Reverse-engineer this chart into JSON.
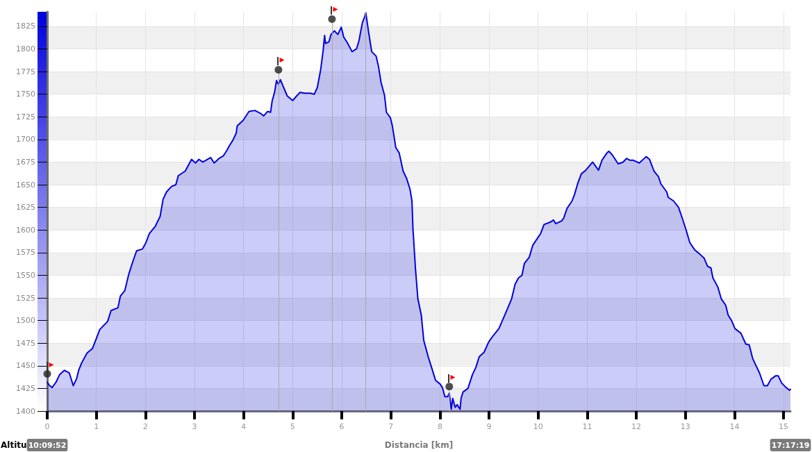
{
  "chart_data": {
    "type": "area",
    "xlabel": "Distancia [km]",
    "ylabel": "Altitu",
    "xlim": [
      0,
      15.14
    ],
    "xticks": [
      0,
      1,
      2,
      3,
      4,
      5,
      6,
      7,
      8,
      9,
      10,
      11,
      12,
      13,
      14,
      15
    ],
    "ylim": [
      1400,
      1841
    ],
    "yticks": [
      1400,
      1425,
      1450,
      1475,
      1500,
      1525,
      1550,
      1575,
      1600,
      1625,
      1650,
      1675,
      1700,
      1725,
      1750,
      1775,
      1800,
      1825
    ],
    "grid": true,
    "series": [
      {
        "color": "#0000dd",
        "x": [
          0,
          0.05,
          0.1,
          0.18,
          0.25,
          0.35,
          0.45,
          0.53,
          0.6,
          0.64,
          0.7,
          0.81,
          0.92,
          1,
          1.07,
          1.23,
          1.3,
          1.44,
          1.49,
          1.58,
          1.66,
          1.73,
          1.82,
          1.94,
          2.01,
          2.08,
          2.2,
          2.3,
          2.36,
          2.43,
          2.53,
          2.62,
          2.67,
          2.81,
          2.86,
          2.94,
          3.02,
          3.09,
          3.17,
          3.33,
          3.4,
          3.5,
          3.59,
          3.66,
          3.71,
          3.78,
          3.85,
          3.87,
          3.99,
          4.11,
          4.23,
          4.34,
          4.41,
          4.49,
          4.55,
          4.58,
          4.63,
          4.67,
          4.71,
          4.75,
          4.82,
          4.89,
          5,
          5.08,
          5.15,
          5.24,
          5.36,
          5.44,
          5.5,
          5.57,
          5.62,
          5.65,
          5.67,
          5.74,
          5.78,
          5.85,
          5.92,
          5.99,
          6.04,
          6.11,
          6.21,
          6.3,
          6.35,
          6.42,
          6.47,
          6.49,
          6.54,
          6.58,
          6.61,
          6.7,
          6.75,
          6.8,
          6.87,
          6.91,
          6.99,
          7.03,
          7.06,
          7.1,
          7.17,
          7.25,
          7.32,
          7.39,
          7.43,
          7.45,
          7.46,
          7.5,
          7.55,
          7.62,
          7.67,
          7.76,
          7.83,
          7.91,
          8,
          8.05,
          8.1,
          8.16,
          8.19,
          8.23,
          8.26,
          8.31,
          8.35,
          8.41,
          8.43,
          8.47,
          8.57,
          8.66,
          8.73,
          8.8,
          8.9,
          8.99,
          9.08,
          9.2,
          9.32,
          9.46,
          9.53,
          9.6,
          9.67,
          9.72,
          9.82,
          9.89,
          10,
          10.05,
          10.12,
          10.26,
          10.31,
          10.36,
          10.48,
          10.52,
          10.59,
          10.69,
          10.74,
          10.81,
          10.88,
          10.97,
          11.11,
          11.23,
          11.3,
          11.4,
          11.44,
          11.51,
          11.63,
          11.73,
          11.8,
          11.87,
          11.94,
          12.06,
          12.2,
          12.27,
          12.36,
          12.45,
          12.5,
          12.62,
          12.65,
          12.76,
          12.86,
          12.93,
          13.02,
          13.09,
          13.19,
          13.28,
          13.38,
          13.45,
          13.52,
          13.56,
          13.66,
          13.73,
          13.82,
          13.87,
          13.94,
          14.01,
          14.13,
          14.23,
          14.3,
          14.37,
          14.44,
          14.51,
          14.6,
          14.67,
          14.74,
          14.84,
          14.89,
          14.96,
          15.05,
          15.12,
          15.14
        ],
        "values": [
          1432,
          1428,
          1426,
          1432,
          1440,
          1445,
          1442,
          1428,
          1436,
          1445,
          1453,
          1464,
          1469,
          1480,
          1490,
          1499,
          1511,
          1514,
          1527,
          1533,
          1551,
          1563,
          1577,
          1579,
          1586,
          1596,
          1604,
          1615,
          1634,
          1642,
          1648,
          1650,
          1660,
          1665,
          1670,
          1678,
          1674,
          1678,
          1675,
          1680,
          1674,
          1679,
          1682,
          1688,
          1693,
          1699,
          1707,
          1715,
          1721,
          1731,
          1732,
          1729,
          1726,
          1731,
          1730,
          1742,
          1752,
          1765,
          1761,
          1766,
          1757,
          1748,
          1743,
          1748,
          1752,
          1751,
          1751,
          1750,
          1757,
          1777,
          1798,
          1815,
          1806,
          1808,
          1816,
          1820,
          1816,
          1824,
          1813,
          1807,
          1797,
          1800,
          1809,
          1829,
          1836,
          1840,
          1821,
          1807,
          1797,
          1792,
          1780,
          1763,
          1749,
          1730,
          1724,
          1715,
          1705,
          1691,
          1685,
          1665,
          1657,
          1645,
          1632,
          1601,
          1593,
          1558,
          1524,
          1506,
          1478,
          1460,
          1448,
          1434,
          1430,
          1426,
          1416,
          1416,
          1420,
          1402,
          1414,
          1404,
          1407,
          1402,
          1414,
          1421,
          1425,
          1440,
          1448,
          1460,
          1465,
          1476,
          1483,
          1491,
          1506,
          1524,
          1540,
          1547,
          1550,
          1563,
          1570,
          1583,
          1592,
          1596,
          1606,
          1609,
          1611,
          1607,
          1610,
          1613,
          1624,
          1632,
          1639,
          1652,
          1662,
          1666,
          1675,
          1666,
          1677,
          1685,
          1687,
          1683,
          1673,
          1675,
          1679,
          1677,
          1677,
          1674,
          1681,
          1678,
          1665,
          1659,
          1651,
          1642,
          1636,
          1632,
          1625,
          1614,
          1599,
          1586,
          1578,
          1574,
          1569,
          1560,
          1558,
          1547,
          1537,
          1524,
          1517,
          1506,
          1500,
          1491,
          1486,
          1474,
          1473,
          1458,
          1450,
          1442,
          1428,
          1428,
          1435,
          1439,
          1439,
          1431,
          1426,
          1423,
          1424
        ]
      },
      {
        "type": "line",
        "color": "#c8c8c8",
        "x": [
          8.19,
          8.19
        ],
        "values": [
          1400,
          1427
        ]
      },
      {
        "type": "scatter",
        "marker": "circle",
        "color": "#222222",
        "x": [
          0,
          4.71,
          5.8,
          8.19
        ],
        "values": [
          1441,
          1777,
          1833,
          1427
        ]
      }
    ],
    "ref_lines": [
      {
        "axis": "x",
        "value": 4.71,
        "color": "#a8a8a8"
      },
      {
        "axis": "x",
        "value": 5.8,
        "color": "#a8a8a8"
      },
      {
        "axis": "x",
        "value": 6.48,
        "color": "#a8a8a8"
      }
    ],
    "annotations": [
      "10:09:52",
      "17:17:19"
    ]
  }
}
